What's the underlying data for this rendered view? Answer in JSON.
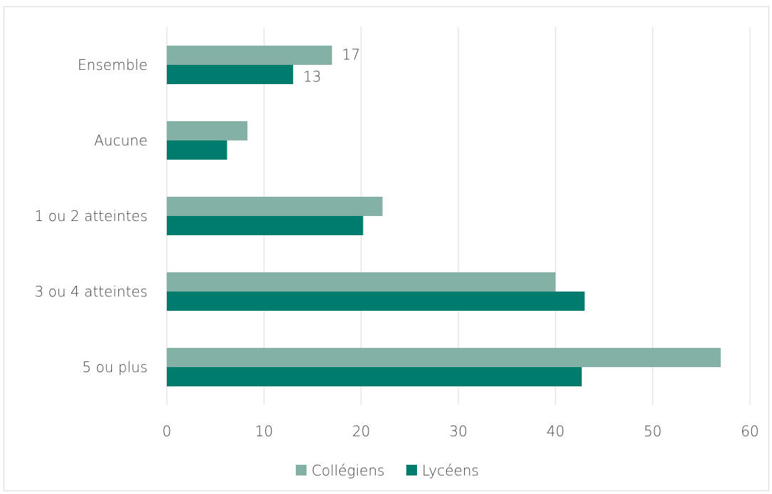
{
  "chart_data": {
    "type": "bar",
    "orientation": "horizontal",
    "categories": [
      "Ensemble",
      "Aucune",
      "1 ou 2 atteintes",
      "3 ou 4 atteintes",
      "5 ou plus"
    ],
    "series": [
      {
        "name": "Collégiens",
        "values": [
          17,
          8.3,
          22.2,
          40,
          57
        ],
        "color": "#84b1a5"
      },
      {
        "name": "Lycéens",
        "values": [
          13,
          6.2,
          20.2,
          43,
          42.7
        ],
        "color": "#007c6e"
      }
    ],
    "data_labels": [
      {
        "series": 0,
        "category": 0,
        "text": "17"
      },
      {
        "series": 1,
        "category": 0,
        "text": "13"
      }
    ],
    "x_ticks": [
      "0",
      "10",
      "20",
      "30",
      "40",
      "50",
      "60"
    ],
    "xlim": [
      0,
      60
    ],
    "grid": "vertical",
    "legend_position": "bottom",
    "title": "",
    "xlabel": "",
    "ylabel": ""
  },
  "colors": {
    "grid": "#d9d9d9",
    "text": "#404040"
  }
}
